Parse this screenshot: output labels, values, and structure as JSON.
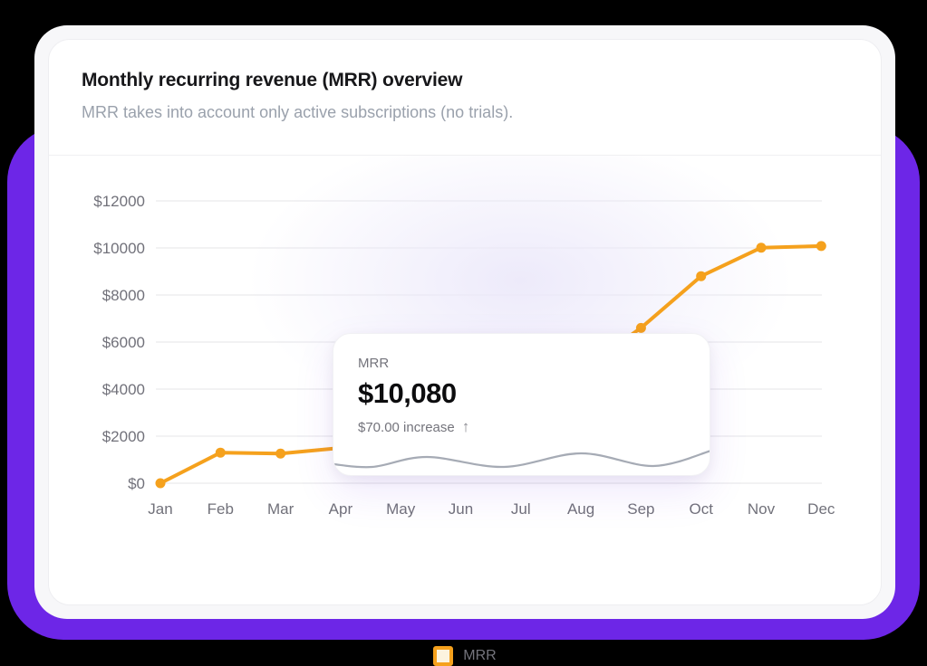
{
  "colors": {
    "page_background": "#000000",
    "accent_purple": "#6D26E7",
    "line_orange": "#F5A11D",
    "legend_fill": "#FCF3DF",
    "grid": "#E9E9EC",
    "axis_text": "#71717A",
    "sparkline": "#A6ABB5",
    "glow": "#ECE9FA"
  },
  "header": {
    "title": "Monthly recurring revenue (MRR) overview",
    "subtitle": "MRR takes into account only active subscriptions (no trials)."
  },
  "tooltip": {
    "label": "MRR",
    "value": "$10,080",
    "delta": "$70.00 increase",
    "delta_icon": "↑",
    "sparkline_points": [
      [
        0,
        35
      ],
      [
        43,
        38
      ],
      [
        103,
        27
      ],
      [
        188,
        38
      ],
      [
        273,
        23
      ],
      [
        353,
        37
      ],
      [
        417,
        20
      ]
    ]
  },
  "legend": {
    "label": "MRR"
  },
  "chart_data": {
    "type": "line",
    "title": "Monthly recurring revenue (MRR) overview",
    "x": [
      "Jan",
      "Feb",
      "Mar",
      "Apr",
      "May",
      "Jun",
      "Jul",
      "Aug",
      "Sep",
      "Oct",
      "Nov",
      "Dec"
    ],
    "series": [
      {
        "name": "MRR",
        "values": [
          0,
          1300,
          1260,
          1500,
          1680,
          1750,
          2800,
          4800,
          6600,
          8800,
          10010,
          10080
        ]
      }
    ],
    "xlabel": "",
    "ylabel": "",
    "ylim": [
      0,
      12000
    ],
    "ytick_step": 2000,
    "ytick_labels": [
      "$0",
      "$2000",
      "$4000",
      "$6000",
      "$8000",
      "$10000",
      "$12000"
    ],
    "grid": "horizontal",
    "legend_position": "bottom",
    "highlighted_point": "Dec"
  }
}
